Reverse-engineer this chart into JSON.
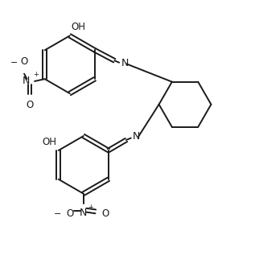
{
  "bg_color": "#ffffff",
  "line_color": "#1a1a1a",
  "line_width": 1.4,
  "font_size": 8.5,
  "figsize": [
    3.27,
    3.38
  ],
  "dpi": 100,
  "xlim": [
    0,
    9.5
  ],
  "ylim": [
    0,
    9.8
  ]
}
